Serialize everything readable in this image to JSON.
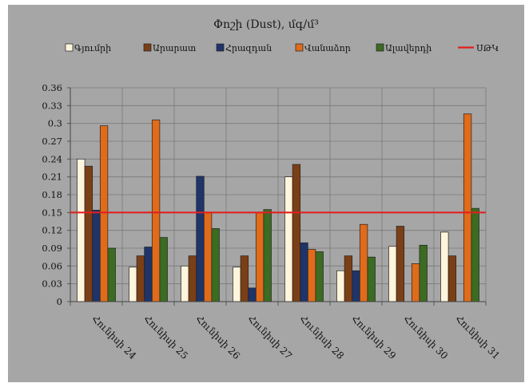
{
  "chart_data": {
    "type": "bar",
    "title": "Փոշի (Dust), մգ/մ³",
    "categories": [
      "Հունիսի 24",
      "Հունիսի 25",
      "Հունիսի 26",
      "Հունիսի 27",
      "Հունիսի 28",
      "Հունիսի 29",
      "Հունիսի 30",
      "Հունիսի 31"
    ],
    "series": [
      {
        "name": "Գյումրի",
        "color": "#fff5dc",
        "values": [
          0.24,
          0.058,
          0.06,
          0.058,
          0.21,
          0.052,
          0.093,
          0.117
        ]
      },
      {
        "name": "Արարատ",
        "color": "#7b3f16",
        "values": [
          0.228,
          0.077,
          0.077,
          0.077,
          0.231,
          0.077,
          0.127,
          0.077
        ]
      },
      {
        "name": "Հրազդան",
        "color": "#1f3468",
        "values": [
          0.154,
          0.092,
          0.211,
          0.023,
          0.099,
          0.052,
          0.0,
          0.0
        ]
      },
      {
        "name": "Վանաձոր",
        "color": "#e06b1b",
        "values": [
          0.296,
          0.306,
          0.15,
          0.15,
          0.088,
          0.13,
          0.064,
          0.316
        ]
      },
      {
        "name": "Ալավերդի",
        "color": "#3c6b22",
        "values": [
          0.09,
          0.108,
          0.123,
          0.155,
          0.084,
          0.075,
          0.095,
          0.157
        ]
      }
    ],
    "reference_line": {
      "name": "ՍԹԿ",
      "value": 0.15,
      "color": "#e02020"
    },
    "ylim": [
      0,
      0.36
    ],
    "yticks": [
      "0",
      "0.03",
      "0.06",
      "0.09",
      "0.12",
      "0.15",
      "0.18",
      "0.21",
      "0.24",
      "0.27",
      "0.3",
      "0.33",
      "0.36"
    ],
    "grid": true,
    "legend_position": "top"
  }
}
